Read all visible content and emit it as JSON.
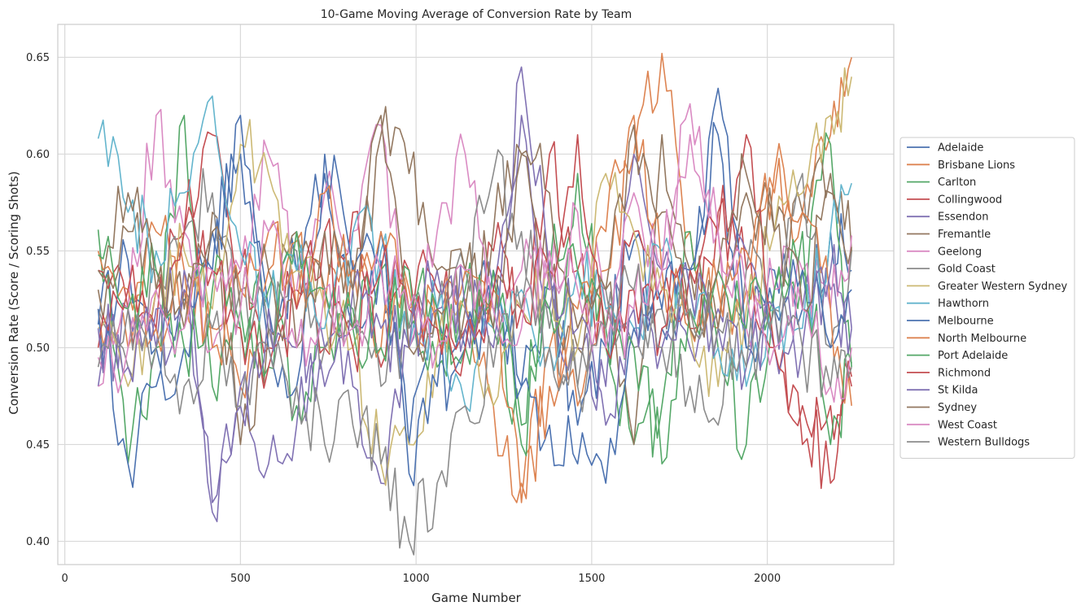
{
  "chart_data": {
    "type": "line",
    "title": "10-Game Moving Average of Conversion Rate by Team",
    "xlabel": "Game Number",
    "ylabel": "Conversion Rate (Score / Scoring Shots)",
    "xlim": [
      -20,
      2360
    ],
    "ylim": [
      0.388,
      0.667
    ],
    "xticks": [
      0,
      500,
      1000,
      1500,
      2000
    ],
    "yticks": [
      0.4,
      0.45,
      0.5,
      0.55,
      0.6,
      0.65
    ],
    "ytick_labels": [
      "0.40",
      "0.45",
      "0.50",
      "0.55",
      "0.60",
      "0.65"
    ],
    "grid": true,
    "legend_position": "right, outside plot",
    "series": [
      {
        "name": "Adelaide",
        "color": "#4c72b0",
        "x": [
          95,
          180,
          260,
          340,
          420,
          500,
          580,
          660,
          740,
          820,
          900,
          980,
          1060,
          1140,
          1220,
          1300,
          1380,
          1460,
          1540,
          1620,
          1700,
          1780,
          1860,
          1940,
          2020,
          2100,
          2180,
          2240
        ],
        "values": [
          0.512,
          0.545,
          0.5,
          0.525,
          0.56,
          0.6,
          0.52,
          0.54,
          0.59,
          0.51,
          0.545,
          0.45,
          0.52,
          0.5,
          0.54,
          0.48,
          0.53,
          0.46,
          0.5,
          0.555,
          0.51,
          0.54,
          0.61,
          0.5,
          0.54,
          0.52,
          0.56,
          0.54
        ]
      },
      {
        "name": "Brisbane Lions",
        "color": "#dd8452",
        "x": [
          95,
          180,
          260,
          340,
          420,
          500,
          580,
          660,
          740,
          820,
          900,
          980,
          1060,
          1140,
          1220,
          1300,
          1380,
          1460,
          1540,
          1620,
          1700,
          1780,
          1860,
          1940,
          2020,
          2100,
          2180,
          2240
        ],
        "values": [
          0.52,
          0.5,
          0.56,
          0.53,
          0.51,
          0.48,
          0.54,
          0.555,
          0.52,
          0.545,
          0.5,
          0.53,
          0.51,
          0.525,
          0.47,
          0.43,
          0.5,
          0.47,
          0.54,
          0.6,
          0.652,
          0.56,
          0.51,
          0.53,
          0.58,
          0.57,
          0.61,
          0.65
        ]
      },
      {
        "name": "Carlton",
        "color": "#55a868",
        "x": [
          95,
          180,
          260,
          340,
          420,
          500,
          580,
          660,
          740,
          820,
          900,
          980,
          1060,
          1140,
          1220,
          1300,
          1380,
          1460,
          1540,
          1620,
          1700,
          1780,
          1860,
          1940,
          2020,
          2100,
          2180,
          2240
        ],
        "values": [
          0.561,
          0.44,
          0.5,
          0.62,
          0.48,
          0.51,
          0.53,
          0.47,
          0.5,
          0.52,
          0.54,
          0.51,
          0.49,
          0.53,
          0.51,
          0.46,
          0.54,
          0.59,
          0.5,
          0.45,
          0.47,
          0.56,
          0.5,
          0.45,
          0.53,
          0.54,
          0.605,
          0.49
        ]
      },
      {
        "name": "Collingwood",
        "color": "#c44e52",
        "x": [
          95,
          180,
          260,
          340,
          420,
          500,
          580,
          660,
          740,
          820,
          900,
          980,
          1060,
          1140,
          1220,
          1300,
          1380,
          1460,
          1540,
          1620,
          1700,
          1780,
          1860,
          1940,
          2020,
          2100,
          2180,
          2240
        ],
        "values": [
          0.54,
          0.52,
          0.53,
          0.56,
          0.61,
          0.54,
          0.5,
          0.53,
          0.5,
          0.57,
          0.49,
          0.54,
          0.53,
          0.51,
          0.55,
          0.52,
          0.6,
          0.54,
          0.51,
          0.56,
          0.53,
          0.51,
          0.57,
          0.54,
          0.5,
          0.45,
          0.47,
          0.48
        ]
      },
      {
        "name": "Essendon",
        "color": "#8172b3",
        "x": [
          95,
          180,
          260,
          340,
          420,
          500,
          580,
          660,
          740,
          820,
          900,
          980,
          1060,
          1140,
          1220,
          1300,
          1380,
          1460,
          1540,
          1620,
          1700,
          1780,
          1860,
          1940,
          2020,
          2100,
          2180,
          2240
        ],
        "values": [
          0.48,
          0.52,
          0.5,
          0.53,
          0.42,
          0.48,
          0.44,
          0.46,
          0.5,
          0.48,
          0.43,
          0.5,
          0.52,
          0.51,
          0.53,
          0.62,
          0.52,
          0.5,
          0.48,
          0.6,
          0.54,
          0.5,
          0.52,
          0.55,
          0.5,
          0.52,
          0.53,
          0.51
        ]
      },
      {
        "name": "Fremantle",
        "color": "#937860",
        "x": [
          95,
          180,
          260,
          340,
          420,
          500,
          580,
          660,
          740,
          820,
          900,
          980,
          1060,
          1140,
          1220,
          1300,
          1380,
          1460,
          1540,
          1620,
          1700,
          1780,
          1860,
          1940,
          2020,
          2100,
          2180,
          2240
        ],
        "values": [
          0.53,
          0.56,
          0.54,
          0.52,
          0.57,
          0.45,
          0.51,
          0.56,
          0.53,
          0.51,
          0.61,
          0.59,
          0.54,
          0.52,
          0.56,
          0.6,
          0.53,
          0.5,
          0.53,
          0.45,
          0.61,
          0.54,
          0.51,
          0.58,
          0.56,
          0.57,
          0.59,
          0.55
        ]
      },
      {
        "name": "Geelong",
        "color": "#da8bc3",
        "x": [
          95,
          180,
          260,
          340,
          420,
          500,
          580,
          660,
          740,
          820,
          900,
          980,
          1060,
          1140,
          1220,
          1300,
          1380,
          1460,
          1540,
          1620,
          1700,
          1780,
          1860,
          1940,
          2020,
          2100,
          2180,
          2240
        ],
        "values": [
          0.495,
          0.52,
          0.62,
          0.56,
          0.5,
          0.54,
          0.6,
          0.53,
          0.58,
          0.56,
          0.615,
          0.5,
          0.56,
          0.6,
          0.52,
          0.54,
          0.53,
          0.57,
          0.52,
          0.58,
          0.54,
          0.61,
          0.56,
          0.51,
          0.53,
          0.54,
          0.52,
          0.558
        ]
      },
      {
        "name": "Gold Coast",
        "color": "#8c8c8c",
        "x": [
          95,
          180,
          260,
          340,
          420,
          500,
          580,
          660,
          740,
          820,
          900,
          980,
          1060,
          1140,
          1220,
          1300,
          1380,
          1460,
          1540,
          1620,
          1700,
          1780,
          1860,
          1940,
          2020,
          2100,
          2180,
          2240
        ],
        "values": [
          0.52,
          0.49,
          0.54,
          0.56,
          0.58,
          0.53,
          0.51,
          0.55,
          0.5,
          0.53,
          0.48,
          0.51,
          0.52,
          0.54,
          0.59,
          0.56,
          0.51,
          0.48,
          0.53,
          0.5,
          0.52,
          0.48,
          0.46,
          0.54,
          0.52,
          0.59,
          0.5,
          0.55
        ]
      },
      {
        "name": "Greater Western Sydney",
        "color": "#ccb974",
        "x": [
          95,
          180,
          260,
          340,
          420,
          500,
          580,
          660,
          740,
          820,
          900,
          980,
          1060,
          1140,
          1220,
          1300,
          1380,
          1460,
          1540,
          1620,
          1700,
          1780,
          1860,
          1940,
          2020,
          2100,
          2180,
          2240
        ],
        "values": [
          0.51,
          0.48,
          0.53,
          0.55,
          0.52,
          0.605,
          0.59,
          0.54,
          0.52,
          0.5,
          0.44,
          0.45,
          0.5,
          0.52,
          0.47,
          0.52,
          0.54,
          0.5,
          0.59,
          0.56,
          0.53,
          0.51,
          0.48,
          0.52,
          0.56,
          0.58,
          0.62,
          0.64
        ]
      },
      {
        "name": "Hawthorn",
        "color": "#64b5cd",
        "x": [
          95,
          180,
          260,
          340,
          420,
          500,
          580,
          660,
          740,
          820,
          900,
          980,
          1060,
          1140,
          1220,
          1300,
          1380,
          1460,
          1540,
          1620,
          1700,
          1780,
          1860,
          1940,
          2020,
          2100,
          2180,
          2240
        ],
        "values": [
          0.608,
          0.57,
          0.55,
          0.58,
          0.63,
          0.55,
          0.52,
          0.54,
          0.51,
          0.56,
          0.55,
          0.5,
          0.52,
          0.47,
          0.51,
          0.53,
          0.5,
          0.54,
          0.52,
          0.51,
          0.55,
          0.53,
          0.5,
          0.48,
          0.52,
          0.51,
          0.56,
          0.585
        ]
      },
      {
        "name": "Melbourne",
        "color": "#4c72b0",
        "x": [
          95,
          180,
          260,
          340,
          420,
          500,
          580,
          660,
          740,
          820,
          900,
          980,
          1060,
          1140,
          1220,
          1300,
          1380,
          1460,
          1540,
          1620,
          1700,
          1780,
          1860,
          1940,
          2020,
          2100,
          2180,
          2240
        ],
        "values": [
          0.52,
          0.44,
          0.48,
          0.5,
          0.54,
          0.62,
          0.5,
          0.48,
          0.6,
          0.54,
          0.56,
          0.435,
          0.48,
          0.5,
          0.52,
          0.48,
          0.46,
          0.44,
          0.43,
          0.51,
          0.52,
          0.54,
          0.634,
          0.5,
          0.52,
          0.54,
          0.5,
          0.53
        ]
      },
      {
        "name": "North Melbourne",
        "color": "#dd8452",
        "x": [
          95,
          180,
          260,
          340,
          420,
          500,
          580,
          660,
          740,
          820,
          900,
          980,
          1060,
          1140,
          1220,
          1300,
          1380,
          1460,
          1540,
          1620,
          1700,
          1780,
          1860,
          1940,
          2020,
          2100,
          2180,
          2240
        ],
        "values": [
          0.55,
          0.53,
          0.51,
          0.54,
          0.5,
          0.53,
          0.56,
          0.52,
          0.58,
          0.54,
          0.56,
          0.52,
          0.51,
          0.54,
          0.53,
          0.42,
          0.48,
          0.52,
          0.56,
          0.62,
          0.54,
          0.51,
          0.53,
          0.55,
          0.59,
          0.57,
          0.52,
          0.47
        ]
      },
      {
        "name": "Port Adelaide",
        "color": "#55a868",
        "x": [
          95,
          180,
          260,
          340,
          420,
          500,
          580,
          660,
          740,
          820,
          900,
          980,
          1060,
          1140,
          1220,
          1300,
          1380,
          1460,
          1540,
          1620,
          1700,
          1780,
          1860,
          1940,
          2020,
          2100,
          2180,
          2240
        ],
        "values": [
          0.548,
          0.52,
          0.54,
          0.5,
          0.53,
          0.52,
          0.49,
          0.56,
          0.53,
          0.51,
          0.5,
          0.54,
          0.52,
          0.5,
          0.54,
          0.45,
          0.52,
          0.54,
          0.51,
          0.5,
          0.44,
          0.52,
          0.54,
          0.51,
          0.53,
          0.56,
          0.45,
          0.492
        ]
      },
      {
        "name": "Richmond",
        "color": "#c44e52",
        "x": [
          95,
          180,
          260,
          340,
          420,
          500,
          580,
          660,
          740,
          820,
          900,
          980,
          1060,
          1140,
          1220,
          1300,
          1380,
          1460,
          1540,
          1620,
          1700,
          1780,
          1860,
          1940,
          2020,
          2100,
          2180,
          2240
        ],
        "values": [
          0.5,
          0.53,
          0.51,
          0.56,
          0.54,
          0.51,
          0.49,
          0.52,
          0.56,
          0.5,
          0.54,
          0.52,
          0.51,
          0.5,
          0.53,
          0.52,
          0.54,
          0.61,
          0.5,
          0.53,
          0.51,
          0.54,
          0.56,
          0.61,
          0.5,
          0.47,
          0.43,
          0.485
        ]
      },
      {
        "name": "St Kilda",
        "color": "#8172b3",
        "x": [
          95,
          180,
          260,
          340,
          420,
          500,
          580,
          660,
          740,
          820,
          900,
          980,
          1060,
          1140,
          1220,
          1300,
          1380,
          1460,
          1540,
          1620,
          1700,
          1780,
          1860,
          1940,
          2020,
          2100,
          2180,
          2240
        ],
        "values": [
          0.51,
          0.49,
          0.52,
          0.54,
          0.415,
          0.47,
          0.52,
          0.5,
          0.48,
          0.53,
          0.51,
          0.5,
          0.54,
          0.52,
          0.5,
          0.645,
          0.54,
          0.51,
          0.46,
          0.52,
          0.5,
          0.53,
          0.51,
          0.49,
          0.52,
          0.5,
          0.54,
          0.51
        ]
      },
      {
        "name": "Sydney",
        "color": "#937860",
        "x": [
          95,
          180,
          260,
          340,
          420,
          500,
          580,
          660,
          740,
          820,
          900,
          980,
          1060,
          1140,
          1220,
          1300,
          1380,
          1460,
          1540,
          1620,
          1700,
          1780,
          1860,
          1940,
          2020,
          2100,
          2180,
          2240
        ],
        "values": [
          0.54,
          0.58,
          0.53,
          0.51,
          0.56,
          0.52,
          0.54,
          0.5,
          0.56,
          0.53,
          0.62,
          0.5,
          0.52,
          0.54,
          0.51,
          0.6,
          0.58,
          0.51,
          0.53,
          0.615,
          0.57,
          0.51,
          0.54,
          0.59,
          0.56,
          0.52,
          0.58,
          0.552
        ]
      },
      {
        "name": "West Coast",
        "color": "#da8bc3",
        "x": [
          95,
          180,
          260,
          340,
          420,
          500,
          580,
          660,
          740,
          820,
          900,
          980,
          1060,
          1140,
          1220,
          1300,
          1380,
          1460,
          1540,
          1620,
          1700,
          1780,
          1860,
          1940,
          2020,
          2100,
          2180,
          2240
        ],
        "values": [
          0.48,
          0.5,
          0.53,
          0.51,
          0.54,
          0.52,
          0.56,
          0.5,
          0.53,
          0.51,
          0.54,
          0.52,
          0.5,
          0.54,
          0.52,
          0.51,
          0.55,
          0.53,
          0.5,
          0.52,
          0.54,
          0.626,
          0.56,
          0.53,
          0.5,
          0.52,
          0.48,
          0.5
        ]
      },
      {
        "name": "Western Bulldogs",
        "color": "#8c8c8c",
        "x": [
          95,
          180,
          260,
          340,
          420,
          500,
          580,
          660,
          740,
          820,
          900,
          980,
          1060,
          1140,
          1220,
          1300,
          1380,
          1460,
          1540,
          1620,
          1700,
          1780,
          1860,
          1940,
          2020,
          2100,
          2180,
          2240
        ],
        "values": [
          0.49,
          0.52,
          0.5,
          0.48,
          0.51,
          0.47,
          0.5,
          0.48,
          0.45,
          0.46,
          0.44,
          0.4,
          0.43,
          0.47,
          0.49,
          0.52,
          0.5,
          0.48,
          0.51,
          0.53,
          0.5,
          0.52,
          0.51,
          0.49,
          0.52,
          0.5,
          0.48,
          0.49
        ]
      }
    ]
  }
}
